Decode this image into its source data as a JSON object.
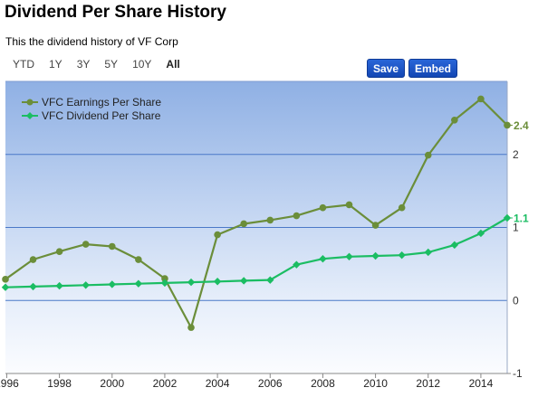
{
  "header": {
    "title": "Dividend Per Share History",
    "subtitle": "This the dividend history of VF Corp"
  },
  "range_buttons": [
    "YTD",
    "1Y",
    "3Y",
    "5Y",
    "10Y",
    "All"
  ],
  "active_range": "All",
  "actions": {
    "save_label": "Save",
    "embed_label": "Embed"
  },
  "colors": {
    "eps": "#6b8e3a",
    "dividend": "#1bbd63",
    "grid": "#4a78c8",
    "button": "#1a55c8"
  },
  "chart_data": {
    "type": "line",
    "title": "",
    "xlabel": "",
    "ylabel": "",
    "x_ticks": [
      "1996",
      "1998",
      "2000",
      "2002",
      "2004",
      "2006",
      "2008",
      "2010",
      "2012",
      "2014"
    ],
    "y_ticks": [
      "2",
      "1",
      "0",
      "-1"
    ],
    "ylim": [
      -1,
      3
    ],
    "xlim": [
      1995.95,
      2015
    ],
    "legend_position": "top-left",
    "grid": true,
    "x": [
      1995.95,
      1997,
      1998,
      1999,
      2000,
      2001,
      2002,
      2003,
      2004,
      2005,
      2006,
      2007,
      2008,
      2009,
      2010,
      2011,
      2012,
      2013,
      2014,
      2015
    ],
    "series": [
      {
        "name": "VFC Earnings Per Share",
        "end_label": "2.4",
        "values": [
          0.29,
          0.56,
          0.67,
          0.77,
          0.74,
          0.56,
          0.3,
          -0.37,
          0.9,
          1.05,
          1.1,
          1.16,
          1.27,
          1.31,
          1.03,
          1.27,
          1.99,
          2.47,
          2.76,
          2.4
        ]
      },
      {
        "name": "VFC Dividend Per Share",
        "end_label": "1.1",
        "values": [
          0.18,
          0.19,
          0.2,
          0.21,
          0.22,
          0.23,
          0.24,
          0.25,
          0.26,
          0.27,
          0.28,
          0.49,
          0.57,
          0.6,
          0.61,
          0.62,
          0.66,
          0.76,
          0.92,
          1.13
        ]
      }
    ]
  }
}
